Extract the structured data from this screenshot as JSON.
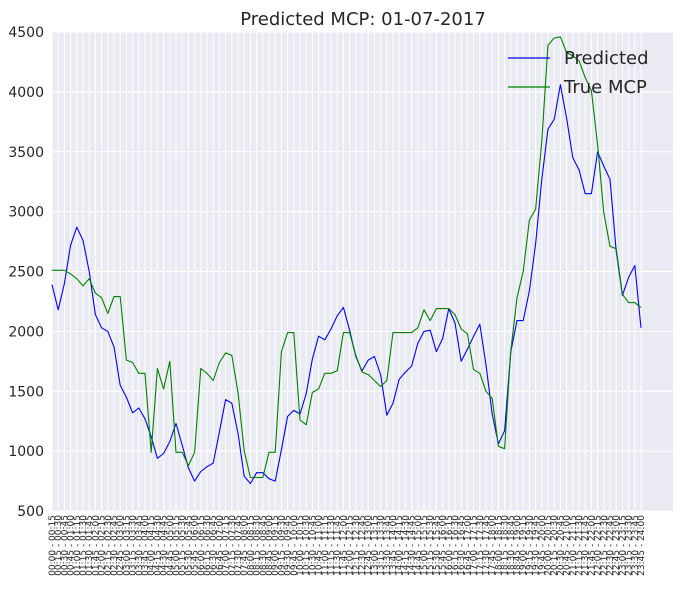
{
  "chart_data": {
    "type": "line",
    "title": "Predicted MCP: 01-07-2017",
    "xlabel": "",
    "ylabel": "",
    "ylim": [
      500,
      4500
    ],
    "yticks": [
      500,
      1000,
      1500,
      2000,
      2500,
      3000,
      3500,
      4000,
      4500
    ],
    "grid": true,
    "legend_position": "top-right",
    "categories": [
      "00:00 - 00:15",
      "00:15 - 00:30",
      "00:30 - 00:45",
      "00:45 - 01:00",
      "01:00 - 01:15",
      "01:15 - 01:30",
      "01:30 - 01:45",
      "01:45 - 02:00",
      "02:00 - 02:15",
      "02:15 - 02:30",
      "02:30 - 02:45",
      "02:45 - 03:00",
      "03:00 - 03:15",
      "03:15 - 03:30",
      "03:30 - 03:45",
      "03:45 - 04:00",
      "04:00 - 04:15",
      "04:15 - 04:30",
      "04:30 - 04:45",
      "04:45 - 05:00",
      "05:00 - 05:15",
      "05:15 - 05:30",
      "05:30 - 05:45",
      "05:45 - 06:00",
      "06:00 - 06:15",
      "06:15 - 06:30",
      "06:30 - 06:45",
      "06:45 - 07:00",
      "07:00 - 07:15",
      "07:15 - 07:30",
      "07:30 - 07:45",
      "07:45 - 08:00",
      "08:00 - 08:15",
      "08:15 - 08:30",
      "08:30 - 08:45",
      "08:45 - 09:00",
      "09:00 - 09:15",
      "09:15 - 09:30",
      "09:30 - 09:45",
      "09:45 - 10:00",
      "10:00 - 10:15",
      "10:15 - 10:30",
      "10:30 - 10:45",
      "10:45 - 11:00",
      "11:00 - 11:15",
      "11:15 - 11:30",
      "11:30 - 11:45",
      "11:45 - 12:00",
      "12:00 - 12:15",
      "12:15 - 12:30",
      "12:30 - 12:45",
      "12:45 - 13:00",
      "13:00 - 13:15",
      "13:15 - 13:30",
      "13:30 - 13:45",
      "13:45 - 14:00",
      "14:00 - 14:15",
      "14:15 - 14:30",
      "14:30 - 14:45",
      "14:45 - 15:00",
      "15:00 - 15:15",
      "15:15 - 15:30",
      "15:30 - 15:45",
      "15:45 - 16:00",
      "16:00 - 16:15",
      "16:15 - 16:30",
      "16:30 - 16:45",
      "16:45 - 17:00",
      "17:00 - 17:15",
      "17:15 - 17:30",
      "17:30 - 17:45",
      "17:45 - 18:00",
      "18:00 - 18:15",
      "18:15 - 18:30",
      "18:30 - 18:45",
      "18:45 - 19:00",
      "19:00 - 19:15",
      "19:15 - 19:30",
      "19:30 - 19:45",
      "19:45 - 20:00",
      "20:00 - 20:15",
      "20:15 - 20:30",
      "20:30 - 20:45",
      "20:45 - 21:00",
      "21:00 - 21:15",
      "21:15 - 21:30",
      "21:30 - 21:45",
      "21:45 - 22:00",
      "22:00 - 22:15",
      "22:15 - 22:30",
      "22:30 - 22:45",
      "22:45 - 23:00",
      "23:00 - 23:15",
      "23:15 - 23:30",
      "23:30 - 23:45",
      "23:45 - 24:00"
    ],
    "series": [
      {
        "name": "Predicted",
        "color": "#0000ff",
        "values": [
          2390,
          2180,
          2400,
          2720,
          2870,
          2760,
          2500,
          2140,
          2030,
          2000,
          1870,
          1550,
          1450,
          1320,
          1360,
          1270,
          1120,
          940,
          980,
          1080,
          1230,
          1050,
          860,
          750,
          830,
          870,
          900,
          1160,
          1430,
          1400,
          1150,
          790,
          730,
          820,
          820,
          770,
          750,
          1010,
          1290,
          1340,
          1310,
          1480,
          1770,
          1960,
          1930,
          2020,
          2130,
          2200,
          2010,
          1790,
          1670,
          1760,
          1790,
          1640,
          1300,
          1400,
          1600,
          1660,
          1710,
          1900,
          2000,
          2010,
          1830,
          1940,
          2190,
          2070,
          1750,
          1850,
          1960,
          2060,
          1720,
          1310,
          1060,
          1170,
          1830,
          2090,
          2090,
          2340,
          2730,
          3270,
          3690,
          3770,
          4060,
          3780,
          3450,
          3350,
          3150,
          3150,
          3500,
          3380,
          3270,
          2670,
          2300,
          2450,
          2550,
          2030
        ]
      },
      {
        "name": "True MCP",
        "color": "#008000",
        "values": [
          2510,
          2510,
          2510,
          2480,
          2440,
          2380,
          2440,
          2320,
          2280,
          2150,
          2290,
          2290,
          1760,
          1740,
          1650,
          1650,
          990,
          1690,
          1520,
          1750,
          990,
          990,
          880,
          990,
          1690,
          1650,
          1590,
          1740,
          1820,
          1800,
          1490,
          1000,
          780,
          780,
          780,
          990,
          990,
          1830,
          1990,
          1990,
          1260,
          1220,
          1490,
          1520,
          1650,
          1650,
          1670,
          1990,
          1990,
          1800,
          1660,
          1640,
          1590,
          1540,
          1590,
          1990,
          1990,
          1990,
          1990,
          2030,
          2180,
          2090,
          2190,
          2190,
          2190,
          2140,
          2020,
          1980,
          1680,
          1650,
          1500,
          1440,
          1040,
          1020,
          1840,
          2280,
          2500,
          2930,
          3020,
          3590,
          4390,
          4450,
          4460,
          4330,
          4300,
          4260,
          4120,
          4010,
          3560,
          2990,
          2710,
          2690,
          2310,
          2240,
          2240,
          2200
        ]
      }
    ]
  }
}
